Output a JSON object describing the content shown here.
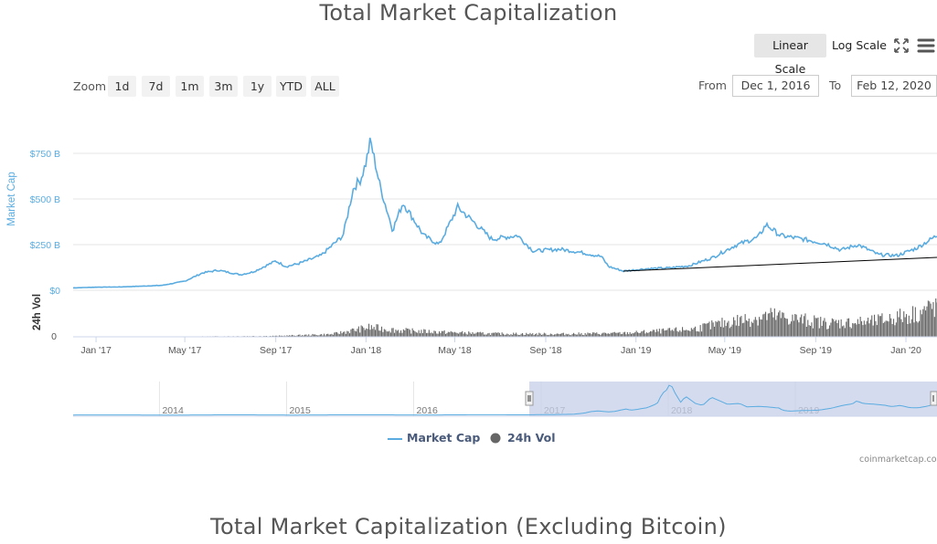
{
  "title": "Total Market Capitalization",
  "next_title": "Total Market Capitalization (Excluding Bitcoin)",
  "toolbar": {
    "linear_scale": "Linear Scale",
    "log_scale": "Log Scale",
    "active_scale": "Linear Scale",
    "fullscreen_icon": "fullscreen-icon",
    "menu_icon": "hamburger-menu-icon"
  },
  "zoom": {
    "label": "Zoom",
    "buttons": [
      "1d",
      "7d",
      "1m",
      "3m",
      "1y",
      "YTD",
      "ALL"
    ]
  },
  "range": {
    "from_label": "From",
    "from_value": "Dec 1, 2016",
    "to_label": "To",
    "to_value": "Feb 12, 2020"
  },
  "legend": {
    "market_cap": "Market Cap",
    "volume": "24h Vol"
  },
  "credits": "coinmarketcap.com",
  "colors": {
    "market_cap_line": "#5aace0",
    "volume_bars": "#666666",
    "navigator_mask": "#c5cfea",
    "trendline": "#000000"
  },
  "chart_data": {
    "type": "line",
    "x_start": "2016-12-01",
    "x_end": "2020-02-12",
    "ylabel": "Market Cap",
    "ylabel2": "24h Vol",
    "y_ticks": [
      "$750 B",
      "$500 B",
      "$250 B",
      "$0"
    ],
    "y2_ticks": [
      "0"
    ],
    "x_ticks": [
      "Jan '17",
      "May '17",
      "Sep '17",
      "Jan '18",
      "May '18",
      "Sep '18",
      "Jan '19",
      "May '19",
      "Sep '19",
      "Jan '20"
    ],
    "navigator_ticks": [
      "2014",
      "2015",
      "2016",
      "2017",
      "2018",
      "2019"
    ],
    "ylim": [
      0,
      800
    ],
    "series": [
      {
        "name": "Market Cap",
        "unit": "B USD",
        "points": [
          [
            "2016-12-01",
            13
          ],
          [
            "2017-01-01",
            17
          ],
          [
            "2017-02-01",
            18
          ],
          [
            "2017-03-01",
            22
          ],
          [
            "2017-04-01",
            27
          ],
          [
            "2017-05-01",
            50
          ],
          [
            "2017-05-25",
            95
          ],
          [
            "2017-06-15",
            110
          ],
          [
            "2017-07-15",
            85
          ],
          [
            "2017-08-01",
            100
          ],
          [
            "2017-09-01",
            160
          ],
          [
            "2017-09-15",
            130
          ],
          [
            "2017-10-01",
            145
          ],
          [
            "2017-11-01",
            190
          ],
          [
            "2017-12-01",
            300
          ],
          [
            "2017-12-15",
            560
          ],
          [
            "2017-12-25",
            610
          ],
          [
            "2018-01-01",
            700
          ],
          [
            "2018-01-07",
            820
          ],
          [
            "2018-01-20",
            570
          ],
          [
            "2018-02-06",
            330
          ],
          [
            "2018-02-20",
            480
          ],
          [
            "2018-03-20",
            300
          ],
          [
            "2018-04-10",
            250
          ],
          [
            "2018-05-05",
            455
          ],
          [
            "2018-05-25",
            380
          ],
          [
            "2018-06-20",
            280
          ],
          [
            "2018-07-25",
            300
          ],
          [
            "2018-08-15",
            215
          ],
          [
            "2018-09-20",
            225
          ],
          [
            "2018-10-15",
            210
          ],
          [
            "2018-11-15",
            185
          ],
          [
            "2018-11-25",
            130
          ],
          [
            "2018-12-15",
            105
          ],
          [
            "2019-01-15",
            118
          ],
          [
            "2019-02-15",
            122
          ],
          [
            "2019-03-15",
            135
          ],
          [
            "2019-04-15",
            180
          ],
          [
            "2019-05-15",
            245
          ],
          [
            "2019-06-15",
            290
          ],
          [
            "2019-06-26",
            360
          ],
          [
            "2019-07-15",
            300
          ],
          [
            "2019-08-15",
            280
          ],
          [
            "2019-09-15",
            255
          ],
          [
            "2019-10-05",
            220
          ],
          [
            "2019-10-28",
            250
          ],
          [
            "2019-11-25",
            195
          ],
          [
            "2019-12-20",
            190
          ],
          [
            "2020-01-15",
            230
          ],
          [
            "2020-02-12",
            300
          ]
        ]
      },
      {
        "name": "24h Vol",
        "unit": "B USD",
        "points": [
          [
            "2016-12-01",
            0.3
          ],
          [
            "2017-03-01",
            0.5
          ],
          [
            "2017-06-01",
            2
          ],
          [
            "2017-09-01",
            4
          ],
          [
            "2017-11-15",
            12
          ],
          [
            "2018-01-05",
            45
          ],
          [
            "2018-02-15",
            30
          ],
          [
            "2018-04-15",
            22
          ],
          [
            "2018-06-15",
            15
          ],
          [
            "2018-09-15",
            13
          ],
          [
            "2018-12-15",
            17
          ],
          [
            "2019-03-15",
            35
          ],
          [
            "2019-05-15",
            75
          ],
          [
            "2019-06-30",
            100
          ],
          [
            "2019-09-15",
            65
          ],
          [
            "2019-11-15",
            70
          ],
          [
            "2020-01-15",
            110
          ],
          [
            "2020-02-12",
            150
          ]
        ]
      }
    ],
    "trendline": {
      "from": [
        "2018-12-15",
        105
      ],
      "to": [
        "2020-02-12",
        180
      ]
    }
  }
}
